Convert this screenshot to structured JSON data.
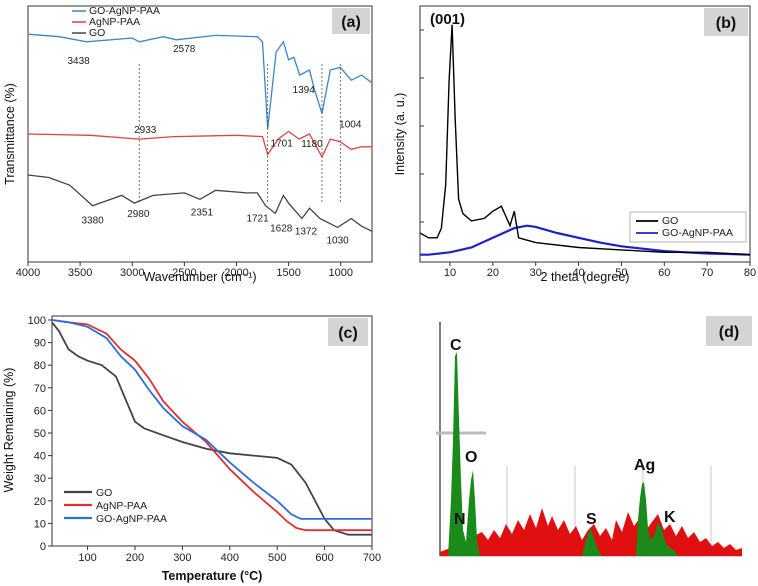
{
  "chart_data": [
    {
      "type": "line",
      "panel": "(a)",
      "xlabel": "Wavenumber (cm⁻¹)",
      "ylabel": "Transmittance (%)",
      "xlim": [
        4000,
        700
      ],
      "xticks": [
        4000,
        3500,
        3000,
        2500,
        2000,
        1500,
        1000
      ],
      "legend": "top-left",
      "series": [
        {
          "name": "GO-AgNP-PAA",
          "color": "#3a87c8",
          "x": [
            4000,
            3700,
            3438,
            3000,
            2933,
            2700,
            2578,
            2200,
            1800,
            1750,
            1701,
            1620,
            1550,
            1500,
            1450,
            1394,
            1300,
            1250,
            1180,
            1100,
            1004,
            900,
            800,
            700
          ],
          "y": [
            89,
            88,
            86,
            87.5,
            86,
            88,
            86.8,
            88.5,
            88,
            86,
            52,
            82,
            86,
            79,
            80,
            73,
            75,
            67,
            58,
            75,
            76,
            71,
            73,
            70
          ]
        },
        {
          "name": "AgNP-PAA",
          "color": "#e04343",
          "x": [
            4000,
            3400,
            2933,
            2600,
            2000,
            1750,
            1701,
            1600,
            1500,
            1400,
            1300,
            1180,
            1100,
            1004,
            900,
            800,
            700
          ],
          "y": [
            50,
            49.5,
            48,
            49,
            49.5,
            49,
            42,
            48,
            51,
            48,
            50,
            41,
            48,
            47,
            44,
            45,
            45
          ]
        },
        {
          "name": "GO",
          "color": "#444444",
          "x": [
            4000,
            3800,
            3600,
            3380,
            3100,
            2980,
            2800,
            2500,
            2351,
            2200,
            1900,
            1800,
            1721,
            1628,
            1550,
            1500,
            1372,
            1300,
            1200,
            1030,
            900,
            800,
            700
          ],
          "y": [
            34,
            33,
            30,
            22,
            26,
            23,
            26,
            27,
            24.5,
            28,
            27,
            27,
            22,
            19,
            26,
            23,
            17,
            21,
            17,
            13.5,
            17,
            14,
            12
          ]
        }
      ],
      "annotations": [
        "3438",
        "2578",
        "1394",
        "2933",
        "1701",
        "1180",
        "1004",
        "3380",
        "2980",
        "2351",
        "1721",
        "1628",
        "1372",
        "1030"
      ]
    },
    {
      "type": "line",
      "panel": "(b)",
      "xlabel": "2 theta (degree)",
      "ylabel": "Intensity (a. u.)",
      "xlim": [
        3,
        80
      ],
      "xticks": [
        10,
        20,
        30,
        40,
        50,
        60,
        70,
        80
      ],
      "peak_label": "(001)",
      "legend": "bottom-right",
      "series": [
        {
          "name": "GO",
          "color": "#000000",
          "x": [
            3,
            5,
            7,
            8,
            9,
            9.8,
            10.5,
            11.2,
            12,
            13,
            15,
            18,
            20,
            22,
            23,
            24,
            25,
            26,
            30,
            40,
            50,
            60,
            70,
            80
          ],
          "y": [
            12,
            10,
            10,
            14,
            32,
            75,
            98,
            60,
            26,
            20,
            17,
            18,
            21,
            23,
            19,
            15,
            21,
            10,
            8,
            6,
            5,
            4,
            4,
            3
          ]
        },
        {
          "name": "GO-AgNP-PAA",
          "color": "#1f1fcc",
          "x": [
            3,
            5,
            10,
            15,
            20,
            25,
            28,
            30,
            35,
            40,
            45,
            50,
            55,
            60,
            65,
            70,
            75,
            80
          ],
          "y": [
            3,
            3,
            4,
            6,
            10,
            14,
            15,
            14.5,
            12,
            10,
            8,
            6.5,
            5.5,
            4.5,
            4,
            3.5,
            3.3,
            3
          ]
        }
      ]
    },
    {
      "type": "line",
      "panel": "(c)",
      "xlabel": "Temperature (°C)",
      "ylabel": "Weight Remaining (%)",
      "xlim": [
        25,
        700
      ],
      "ylim": [
        0,
        100
      ],
      "xticks": [
        100,
        200,
        300,
        400,
        500,
        600,
        700
      ],
      "yticks": [
        0,
        10,
        20,
        30,
        40,
        50,
        60,
        70,
        80,
        90,
        100
      ],
      "legend": "bottom-left",
      "series": [
        {
          "name": "GO",
          "color": "#444444",
          "x": [
            25,
            40,
            60,
            80,
            100,
            130,
            160,
            180,
            200,
            220,
            260,
            300,
            350,
            400,
            450,
            500,
            530,
            560,
            600,
            620,
            650,
            700
          ],
          "y": [
            99,
            95,
            87,
            84,
            82,
            80,
            75,
            65,
            55,
            52,
            49,
            46,
            43,
            41,
            40,
            39,
            36,
            28,
            12,
            7,
            5,
            5
          ]
        },
        {
          "name": "AgNP-PAA",
          "color": "#e03030",
          "x": [
            25,
            60,
            100,
            140,
            170,
            200,
            230,
            260,
            300,
            350,
            400,
            450,
            500,
            520,
            540,
            560,
            600,
            650,
            700
          ],
          "y": [
            100,
            99,
            98,
            94,
            87,
            82,
            74,
            64,
            55,
            46,
            34,
            24,
            15,
            11,
            8,
            7,
            7,
            7,
            7
          ]
        },
        {
          "name": "GO-AgNP-PAA",
          "color": "#2a6fd8",
          "x": [
            25,
            60,
            100,
            140,
            170,
            200,
            230,
            260,
            300,
            350,
            400,
            450,
            500,
            530,
            550,
            600,
            650,
            700
          ],
          "y": [
            100,
            99,
            97,
            92,
            84,
            78,
            69,
            61,
            53,
            47,
            37,
            28,
            20,
            14,
            12,
            12,
            12,
            12
          ]
        }
      ]
    },
    {
      "type": "bar",
      "panel": "(d)",
      "element_labels": [
        "C",
        "O",
        "N",
        "S",
        "Ag",
        "K"
      ]
    }
  ]
}
